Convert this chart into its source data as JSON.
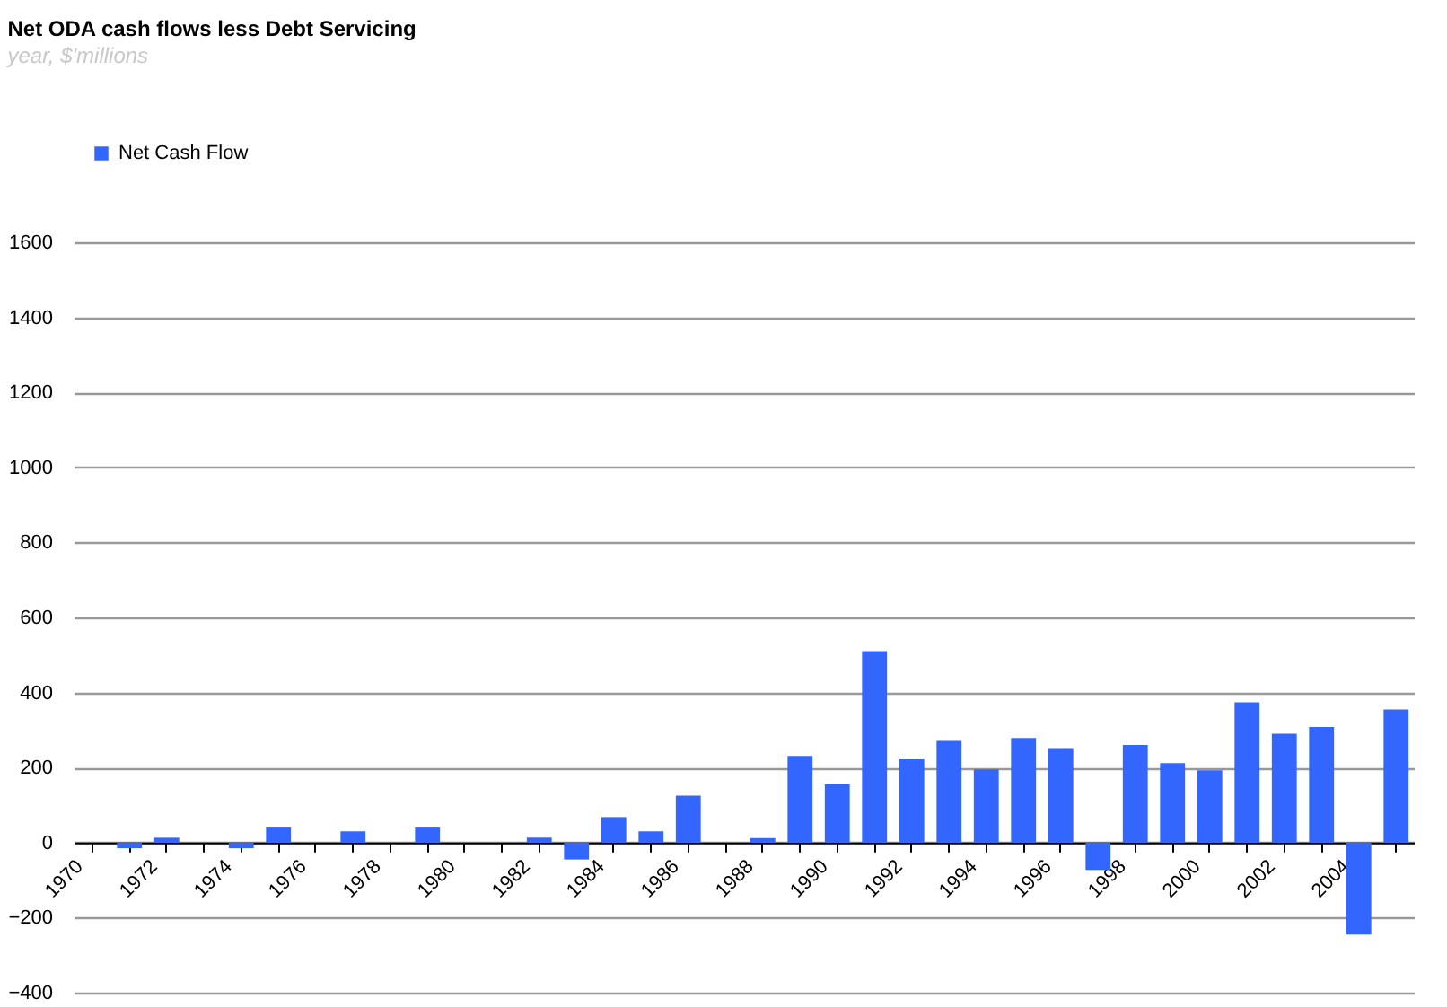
{
  "chart_data": {
    "type": "bar",
    "title": "Net ODA cash flows less Debt Servicing",
    "subtitle": "year, $'millions",
    "categories": [
      "1970",
      null,
      "1972",
      null,
      "1974",
      null,
      "1976",
      null,
      "1978",
      null,
      "1980",
      null,
      "1982",
      null,
      "1984",
      null,
      "1986",
      null,
      "1988",
      null,
      "1990",
      null,
      "1992",
      null,
      "1994",
      null,
      "1996",
      null,
      "1998",
      null,
      "2000",
      null,
      "2002",
      null,
      "2004",
      null
    ],
    "series": [
      {
        "name": "Net Cash Flow",
        "color": "#3366ff",
        "values": [
          0,
          -15,
          13,
          0,
          -15,
          40,
          0,
          30,
          0,
          40,
          0,
          0,
          13,
          -45,
          68,
          30,
          125,
          0,
          12,
          231,
          155,
          510,
          222,
          271,
          195,
          279,
          252,
          -73,
          260,
          212,
          193,
          374,
          290,
          308,
          -245,
          355
        ]
      }
    ],
    "ylim": [
      -400,
      1600
    ],
    "yticks": [
      -400,
      -200,
      0,
      200,
      400,
      600,
      800,
      1000,
      1200,
      1400,
      1600
    ],
    "grid": "y",
    "legend": "top left"
  }
}
